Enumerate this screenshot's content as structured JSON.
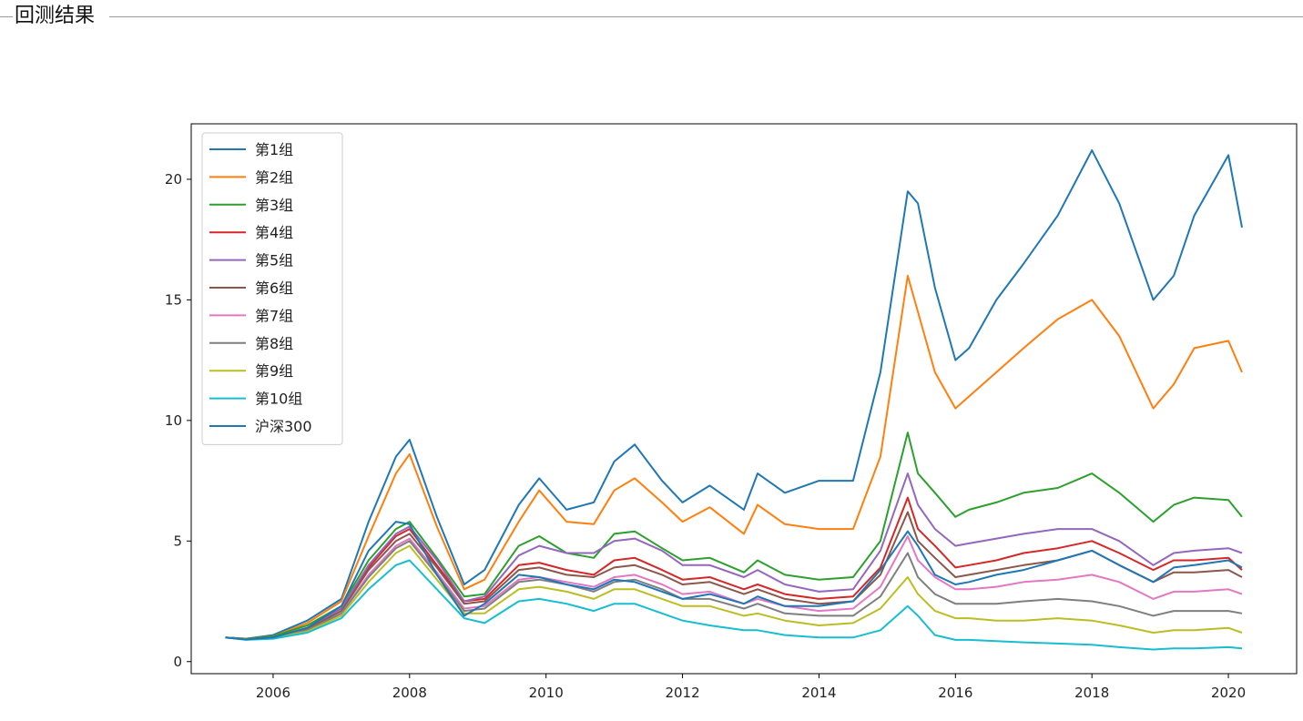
{
  "section": {
    "title": "回测结果"
  },
  "chart_data": {
    "type": "line",
    "title": "",
    "xlabel": "",
    "ylabel": "",
    "xlim": [
      2004.8,
      2021.0
    ],
    "ylim": [
      -0.5,
      22.3
    ],
    "xticks": [
      2006,
      2008,
      2010,
      2012,
      2014,
      2016,
      2018,
      2020
    ],
    "xtick_labels": [
      "2006",
      "2008",
      "2010",
      "2012",
      "2014",
      "2016",
      "2018",
      "2020"
    ],
    "yticks": [
      0,
      5,
      10,
      15,
      20
    ],
    "ytick_labels": [
      "0",
      "5",
      "10",
      "15",
      "20"
    ],
    "legend_position": "top-left",
    "x": [
      2005.3,
      2005.6,
      2006.0,
      2006.5,
      2007.0,
      2007.4,
      2007.8,
      2008.0,
      2008.4,
      2008.8,
      2009.1,
      2009.6,
      2009.9,
      2010.3,
      2010.7,
      2011.0,
      2011.3,
      2011.7,
      2012.0,
      2012.4,
      2012.9,
      2013.1,
      2013.5,
      2014.0,
      2014.5,
      2014.9,
      2015.3,
      2015.45,
      2015.7,
      2016.0,
      2016.2,
      2016.6,
      2017.0,
      2017.5,
      2018.0,
      2018.4,
      2018.9,
      2019.2,
      2019.5,
      2020.0,
      2020.2
    ],
    "series": [
      {
        "name": "第1组",
        "color": "#1f77b4",
        "values": [
          1.0,
          0.95,
          1.1,
          1.7,
          2.6,
          5.8,
          8.5,
          9.2,
          6.0,
          3.2,
          3.8,
          6.5,
          7.6,
          6.3,
          6.6,
          8.3,
          9.0,
          7.5,
          6.6,
          7.3,
          6.3,
          7.8,
          7.0,
          7.5,
          7.5,
          12.0,
          19.5,
          19.0,
          15.5,
          12.5,
          13.0,
          15.0,
          16.5,
          18.5,
          21.2,
          19.0,
          15.0,
          16.0,
          18.5,
          21.0,
          18.0
        ]
      },
      {
        "name": "第2组",
        "color": "#ff7f0e",
        "values": [
          1.0,
          0.95,
          1.05,
          1.6,
          2.5,
          5.2,
          7.8,
          8.6,
          5.6,
          3.0,
          3.4,
          5.8,
          7.1,
          5.8,
          5.7,
          7.1,
          7.6,
          6.6,
          5.8,
          6.4,
          5.3,
          6.5,
          5.7,
          5.5,
          5.5,
          8.5,
          16.0,
          14.5,
          12.0,
          10.5,
          11.0,
          12.0,
          13.0,
          14.2,
          15.0,
          13.5,
          10.5,
          11.5,
          13.0,
          13.3,
          12.0
        ]
      },
      {
        "name": "第3组",
        "color": "#2ca02c",
        "values": [
          1.0,
          0.95,
          1.05,
          1.5,
          2.3,
          4.2,
          5.5,
          5.8,
          4.3,
          2.7,
          2.8,
          4.8,
          5.2,
          4.5,
          4.3,
          5.3,
          5.4,
          4.7,
          4.2,
          4.3,
          3.7,
          4.2,
          3.6,
          3.4,
          3.5,
          5.0,
          9.5,
          7.8,
          7.0,
          6.0,
          6.3,
          6.6,
          7.0,
          7.2,
          7.8,
          7.0,
          5.8,
          6.5,
          6.8,
          6.7,
          6.0
        ]
      },
      {
        "name": "第4组",
        "color": "#d62728",
        "values": [
          1.0,
          0.93,
          1.0,
          1.4,
          2.2,
          3.9,
          5.2,
          5.5,
          4.0,
          2.5,
          2.6,
          4.0,
          4.1,
          3.8,
          3.6,
          4.2,
          4.3,
          3.8,
          3.4,
          3.5,
          3.0,
          3.2,
          2.8,
          2.6,
          2.7,
          3.9,
          6.8,
          5.5,
          4.8,
          3.9,
          4.0,
          4.2,
          4.5,
          4.7,
          5.0,
          4.5,
          3.8,
          4.2,
          4.2,
          4.3,
          3.8
        ]
      },
      {
        "name": "第5组",
        "color": "#9467bd",
        "values": [
          1.0,
          0.93,
          1.0,
          1.4,
          2.2,
          4.0,
          5.3,
          5.6,
          4.2,
          2.5,
          2.7,
          4.4,
          4.8,
          4.5,
          4.5,
          5.0,
          5.1,
          4.6,
          4.0,
          4.0,
          3.5,
          3.8,
          3.2,
          2.9,
          3.0,
          4.6,
          7.8,
          6.5,
          5.5,
          4.8,
          4.9,
          5.1,
          5.3,
          5.5,
          5.5,
          5.0,
          4.0,
          4.5,
          4.6,
          4.7,
          4.5
        ]
      },
      {
        "name": "第6组",
        "color": "#8c564b",
        "values": [
          1.0,
          0.93,
          1.0,
          1.35,
          2.1,
          3.8,
          5.0,
          5.3,
          3.9,
          2.4,
          2.5,
          3.8,
          3.9,
          3.6,
          3.5,
          3.9,
          4.0,
          3.6,
          3.2,
          3.3,
          2.8,
          3.0,
          2.6,
          2.4,
          2.5,
          3.6,
          6.2,
          5.0,
          4.3,
          3.5,
          3.6,
          3.8,
          4.0,
          4.2,
          4.6,
          4.0,
          3.3,
          3.7,
          3.7,
          3.8,
          3.5
        ]
      },
      {
        "name": "第7组",
        "color": "#e377c2",
        "values": [
          1.0,
          0.92,
          0.98,
          1.3,
          2.0,
          3.6,
          4.8,
          5.1,
          3.7,
          2.2,
          2.3,
          3.4,
          3.5,
          3.3,
          3.1,
          3.5,
          3.6,
          3.2,
          2.8,
          2.9,
          2.4,
          2.6,
          2.3,
          2.1,
          2.2,
          3.1,
          5.2,
          4.2,
          3.5,
          3.0,
          3.0,
          3.1,
          3.3,
          3.4,
          3.6,
          3.3,
          2.6,
          2.9,
          2.9,
          3.0,
          2.8
        ]
      },
      {
        "name": "第8组",
        "color": "#7f7f7f",
        "values": [
          1.0,
          0.92,
          0.98,
          1.3,
          2.0,
          3.5,
          4.7,
          5.0,
          3.6,
          2.1,
          2.2,
          3.3,
          3.4,
          3.2,
          2.9,
          3.3,
          3.4,
          3.0,
          2.6,
          2.6,
          2.2,
          2.4,
          2.0,
          1.9,
          1.9,
          2.7,
          4.5,
          3.5,
          2.8,
          2.4,
          2.4,
          2.4,
          2.5,
          2.6,
          2.5,
          2.3,
          1.9,
          2.1,
          2.1,
          2.1,
          2.0
        ]
      },
      {
        "name": "第9组",
        "color": "#bcbd22",
        "values": [
          1.0,
          0.92,
          0.97,
          1.25,
          1.9,
          3.3,
          4.5,
          4.8,
          3.4,
          2.0,
          2.0,
          3.0,
          3.1,
          2.9,
          2.6,
          3.0,
          3.0,
          2.6,
          2.3,
          2.3,
          1.9,
          2.0,
          1.7,
          1.5,
          1.6,
          2.2,
          3.5,
          2.8,
          2.1,
          1.8,
          1.8,
          1.7,
          1.7,
          1.8,
          1.7,
          1.5,
          1.2,
          1.3,
          1.3,
          1.4,
          1.2
        ]
      },
      {
        "name": "第10组",
        "color": "#17becf",
        "values": [
          1.0,
          0.9,
          0.95,
          1.2,
          1.8,
          3.0,
          4.0,
          4.2,
          3.0,
          1.8,
          1.6,
          2.5,
          2.6,
          2.4,
          2.1,
          2.4,
          2.4,
          2.0,
          1.7,
          1.5,
          1.3,
          1.3,
          1.1,
          1.0,
          1.0,
          1.3,
          2.3,
          1.9,
          1.1,
          0.9,
          0.9,
          0.85,
          0.8,
          0.75,
          0.7,
          0.6,
          0.5,
          0.55,
          0.55,
          0.6,
          0.55
        ]
      },
      {
        "name": "沪深300",
        "color": "#1f77b4",
        "values": [
          1.0,
          0.92,
          1.0,
          1.4,
          2.3,
          4.6,
          5.8,
          5.7,
          3.6,
          1.9,
          2.4,
          3.6,
          3.5,
          3.2,
          3.0,
          3.4,
          3.3,
          2.9,
          2.6,
          2.8,
          2.4,
          2.7,
          2.3,
          2.3,
          2.5,
          3.8,
          5.4,
          4.8,
          3.6,
          3.2,
          3.3,
          3.6,
          3.8,
          4.2,
          4.6,
          4.0,
          3.3,
          3.9,
          4.0,
          4.2,
          3.9
        ]
      }
    ]
  }
}
